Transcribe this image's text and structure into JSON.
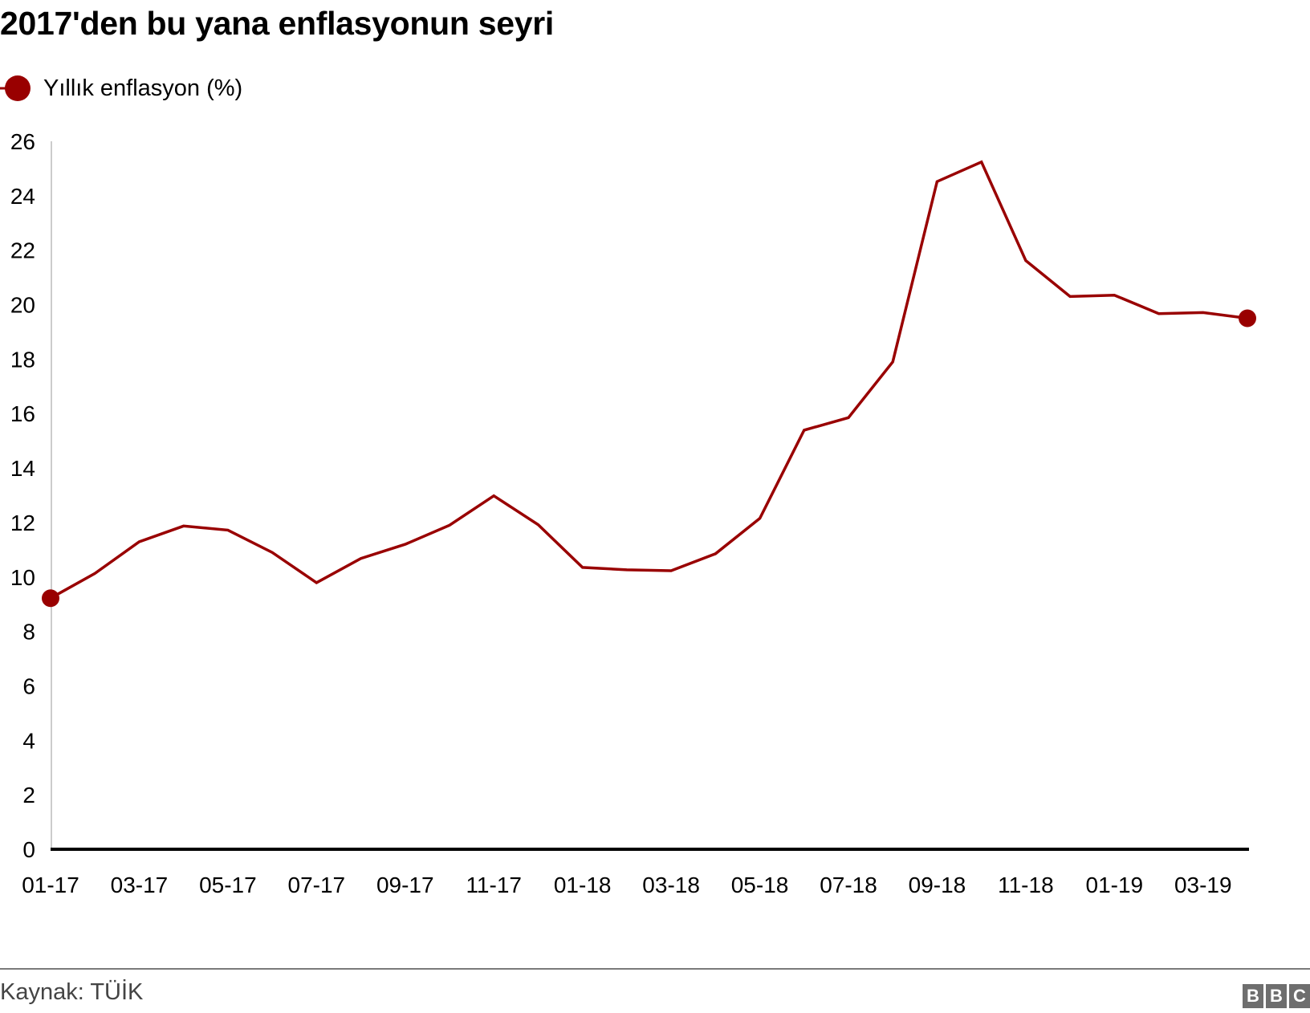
{
  "title": "2017'den bu yana enflasyonun seyri",
  "legend": {
    "label": "Yıllık enflasyon (%)",
    "color": "#990000"
  },
  "source": "Kaynak: TÜİK",
  "brand": [
    "B",
    "B",
    "C"
  ],
  "colors": {
    "line": "#990000",
    "axis": "#000000",
    "yaxis": "#cccccc",
    "rule": "#7a7a7a"
  },
  "chart_data": {
    "type": "line",
    "title": "2017'den bu yana enflasyonun seyri",
    "xlabel": "",
    "ylabel": "",
    "ylim": [
      0,
      26
    ],
    "yticks": [
      0,
      2,
      4,
      6,
      8,
      10,
      12,
      14,
      16,
      18,
      20,
      22,
      24,
      26
    ],
    "xtick_labels": [
      "01-17",
      "03-17",
      "05-17",
      "07-17",
      "09-17",
      "11-17",
      "01-18",
      "03-18",
      "05-18",
      "07-18",
      "09-18",
      "11-18",
      "01-19",
      "03-19"
    ],
    "grid": false,
    "legend_position": "top-left",
    "categories": [
      "01-17",
      "02-17",
      "03-17",
      "04-17",
      "05-17",
      "06-17",
      "07-17",
      "08-17",
      "09-17",
      "10-17",
      "11-17",
      "12-17",
      "01-18",
      "02-18",
      "03-18",
      "04-18",
      "05-18",
      "06-18",
      "07-18",
      "08-18",
      "09-18",
      "10-18",
      "11-18",
      "12-18",
      "01-19",
      "02-19",
      "03-19",
      "04-19"
    ],
    "series": [
      {
        "name": "Yıllık enflasyon (%)",
        "values": [
          9.22,
          10.13,
          11.29,
          11.87,
          11.72,
          10.9,
          9.79,
          10.68,
          11.2,
          11.9,
          12.98,
          11.92,
          10.35,
          10.26,
          10.23,
          10.85,
          12.15,
          15.39,
          15.85,
          17.9,
          24.52,
          25.24,
          21.62,
          20.3,
          20.35,
          19.67,
          19.71,
          19.5
        ],
        "markers": "first-and-last"
      }
    ]
  }
}
